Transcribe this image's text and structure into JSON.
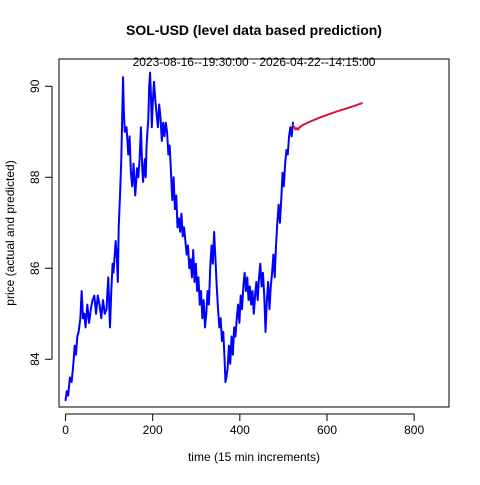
{
  "chart_data": {
    "type": "line",
    "title": "SOL-USD (level data based prediction)",
    "subtitle": "2023-08-16--19:30:00  -  2026-04-22--14:15:00",
    "xlabel": "time (15 min increments)",
    "ylabel": "price (actual and predicted)",
    "xlim": [
      -15,
      880
    ],
    "ylim": [
      82.95,
      90.6
    ],
    "x_ticks": [
      0,
      200,
      400,
      600,
      800
    ],
    "y_ticks": [
      84,
      86,
      88,
      90
    ],
    "grid": false,
    "legend": "none",
    "series": [
      {
        "role": "actual",
        "color": "#0000ff",
        "points": [
          [
            0,
            83.1
          ],
          [
            3,
            83.3
          ],
          [
            6,
            83.2
          ],
          [
            10,
            83.6
          ],
          [
            14,
            83.5
          ],
          [
            18,
            83.9
          ],
          [
            21,
            84.3
          ],
          [
            24,
            84.1
          ],
          [
            27,
            84.5
          ],
          [
            30,
            84.6
          ],
          [
            34,
            84.9
          ],
          [
            37,
            85.5
          ],
          [
            40,
            84.9
          ],
          [
            43,
            85.0
          ],
          [
            46,
            84.7
          ],
          [
            50,
            85.2
          ],
          [
            54,
            84.8
          ],
          [
            58,
            85.1
          ],
          [
            62,
            85.3
          ],
          [
            66,
            85.4
          ],
          [
            70,
            85.0
          ],
          [
            74,
            85.4
          ],
          [
            78,
            85.2
          ],
          [
            82,
            84.9
          ],
          [
            86,
            85.3
          ],
          [
            90,
            85.0
          ],
          [
            94,
            85.1
          ],
          [
            98,
            85.8
          ],
          [
            102,
            84.7
          ],
          [
            105,
            85.5
          ],
          [
            108,
            86.1
          ],
          [
            110,
            85.9
          ],
          [
            113,
            86.3
          ],
          [
            115,
            86.6
          ],
          [
            118,
            86.2
          ],
          [
            120,
            85.7
          ],
          [
            122,
            86.9
          ],
          [
            125,
            87.6
          ],
          [
            128,
            88.4
          ],
          [
            130,
            89.3
          ],
          [
            132,
            90.2
          ],
          [
            134,
            89.4
          ],
          [
            136,
            89.0
          ],
          [
            140,
            89.1
          ],
          [
            144,
            88.5
          ],
          [
            147,
            88.9
          ],
          [
            150,
            88.1
          ],
          [
            153,
            87.8
          ],
          [
            156,
            88.3
          ],
          [
            160,
            87.6
          ],
          [
            164,
            88.2
          ],
          [
            167,
            88.0
          ],
          [
            170,
            88.4
          ],
          [
            173,
            89.1
          ],
          [
            176,
            88.2
          ],
          [
            178,
            87.9
          ],
          [
            180,
            88.2
          ],
          [
            182,
            88.4
          ],
          [
            184,
            88.0
          ],
          [
            186,
            88.7
          ],
          [
            188,
            89.0
          ],
          [
            190,
            89.3
          ],
          [
            192,
            90.0
          ],
          [
            194,
            90.3
          ],
          [
            196,
            89.8
          ],
          [
            198,
            89.1
          ],
          [
            200,
            89.6
          ],
          [
            203,
            90.1
          ],
          [
            206,
            89.7
          ],
          [
            209,
            89.4
          ],
          [
            212,
            89.1
          ],
          [
            215,
            89.6
          ],
          [
            218,
            89.3
          ],
          [
            221,
            88.8
          ],
          [
            224,
            89.2
          ],
          [
            227,
            88.9
          ],
          [
            230,
            89.2
          ],
          [
            233,
            89.0
          ],
          [
            236,
            88.5
          ],
          [
            239,
            88.7
          ],
          [
            242,
            88.1
          ],
          [
            245,
            87.5
          ],
          [
            248,
            88.0
          ],
          [
            251,
            87.3
          ],
          [
            254,
            87.6
          ],
          [
            257,
            86.9
          ],
          [
            260,
            87.1
          ],
          [
            263,
            86.8
          ],
          [
            266,
            87.2
          ],
          [
            269,
            86.7
          ],
          [
            272,
            86.9
          ],
          [
            275,
            86.6
          ],
          [
            278,
            86.3
          ],
          [
            281,
            86.5
          ],
          [
            284,
            86.0
          ],
          [
            287,
            86.2
          ],
          [
            290,
            85.8
          ],
          [
            293,
            86.4
          ],
          [
            296,
            85.7
          ],
          [
            299,
            86.1
          ],
          [
            302,
            85.5
          ],
          [
            305,
            85.8
          ],
          [
            308,
            85.2
          ],
          [
            311,
            85.5
          ],
          [
            314,
            84.9
          ],
          [
            317,
            85.3
          ],
          [
            320,
            84.7
          ],
          [
            323,
            85.0
          ],
          [
            326,
            85.5
          ],
          [
            329,
            85.2
          ],
          [
            332,
            86.0
          ],
          [
            335,
            86.5
          ],
          [
            338,
            86.1
          ],
          [
            341,
            86.8
          ],
          [
            344,
            86.2
          ],
          [
            347,
            85.6
          ],
          [
            350,
            85.1
          ],
          [
            353,
            84.7
          ],
          [
            356,
            84.9
          ],
          [
            359,
            84.4
          ],
          [
            362,
            84.6
          ],
          [
            365,
            84.0
          ],
          [
            367,
            83.5
          ],
          [
            369,
            83.6
          ],
          [
            372,
            83.8
          ],
          [
            375,
            84.3
          ],
          [
            378,
            83.9
          ],
          [
            381,
            84.5
          ],
          [
            384,
            84.1
          ],
          [
            387,
            84.7
          ],
          [
            390,
            84.5
          ],
          [
            393,
            84.9
          ],
          [
            396,
            85.2
          ],
          [
            399,
            84.8
          ],
          [
            402,
            85.4
          ],
          [
            405,
            85.1
          ],
          [
            408,
            85.6
          ],
          [
            411,
            85.9
          ],
          [
            414,
            85.5
          ],
          [
            417,
            85.8
          ],
          [
            420,
            85.3
          ],
          [
            423,
            85.6
          ],
          [
            426,
            85.2
          ],
          [
            429,
            85.5
          ],
          [
            432,
            85.0
          ],
          [
            435,
            85.4
          ],
          [
            438,
            85.7
          ],
          [
            441,
            85.3
          ],
          [
            444,
            85.8
          ],
          [
            447,
            86.1
          ],
          [
            450,
            85.6
          ],
          [
            453,
            85.9
          ],
          [
            456,
            85.4
          ],
          [
            459,
            84.6
          ],
          [
            462,
            85.3
          ],
          [
            465,
            85.7
          ],
          [
            468,
            85.1
          ],
          [
            471,
            85.6
          ],
          [
            474,
            85.9
          ],
          [
            477,
            86.3
          ],
          [
            480,
            85.8
          ],
          [
            483,
            86.5
          ],
          [
            486,
            87.0
          ],
          [
            489,
            87.4
          ],
          [
            492,
            87.0
          ],
          [
            495,
            87.5
          ],
          [
            498,
            88.1
          ],
          [
            501,
            87.8
          ],
          [
            504,
            88.3
          ],
          [
            507,
            88.6
          ],
          [
            510,
            88.5
          ],
          [
            513,
            88.9
          ],
          [
            516,
            89.1
          ],
          [
            519,
            88.9
          ],
          [
            522,
            89.2
          ]
        ]
      },
      {
        "role": "predicted",
        "color": "#dc143c",
        "points": [
          [
            522,
            89.15
          ],
          [
            525,
            89.1
          ],
          [
            528,
            89.05
          ],
          [
            531,
            89.08
          ],
          [
            534,
            89.05
          ],
          [
            537,
            89.1
          ],
          [
            545,
            89.15
          ],
          [
            560,
            89.22
          ],
          [
            580,
            89.3
          ],
          [
            600,
            89.37
          ],
          [
            620,
            89.44
          ],
          [
            640,
            89.5
          ],
          [
            660,
            89.56
          ],
          [
            680,
            89.63
          ]
        ]
      }
    ]
  }
}
